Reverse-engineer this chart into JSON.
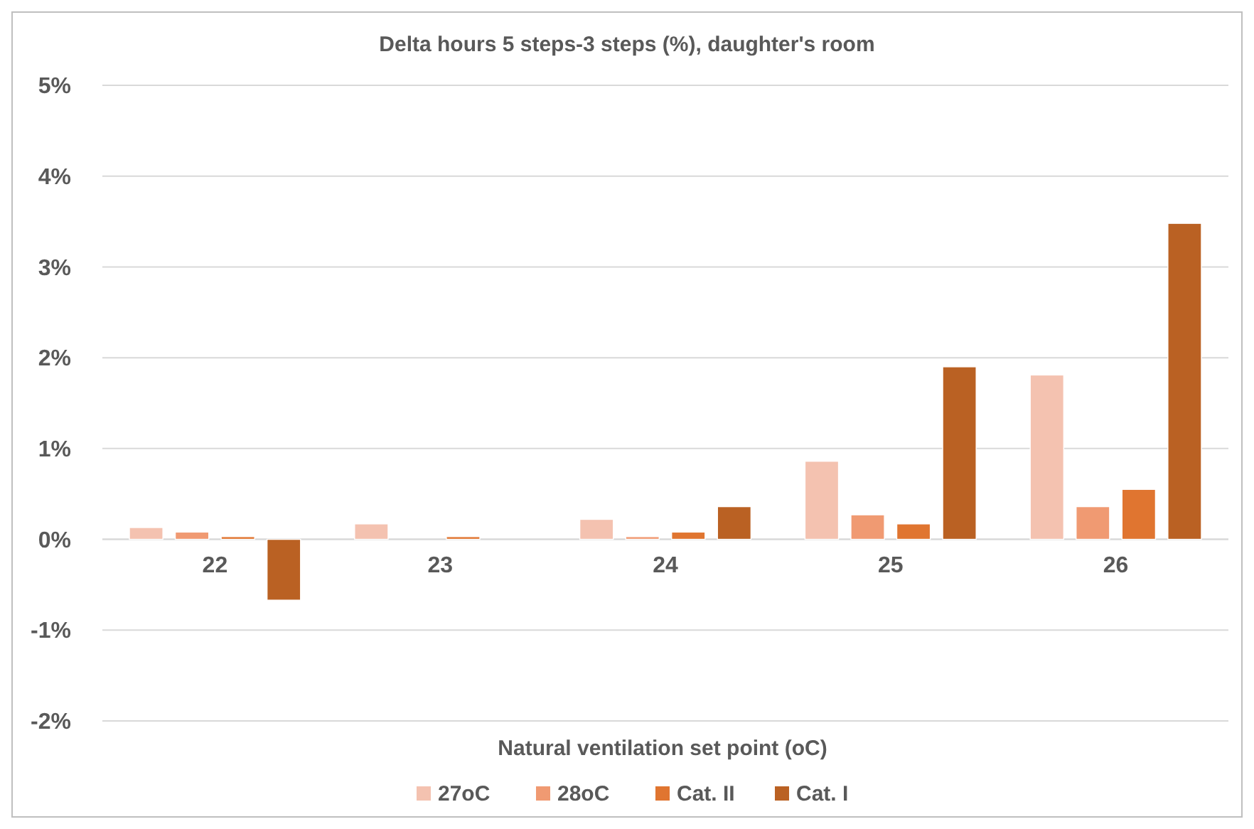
{
  "chart_data": {
    "type": "bar",
    "title": "Delta hours 5 steps-3 steps (%), daughter's room",
    "xlabel": "Natural ventilation set point (oC)",
    "categories": [
      "22",
      "23",
      "24",
      "25",
      "26"
    ],
    "series": [
      {
        "name": "27oC",
        "color": "#f4c2b0",
        "values": [
          0.13,
          0.17,
          0.22,
          0.86,
          1.81
        ]
      },
      {
        "name": "28oC",
        "color": "#f09a72",
        "values": [
          0.08,
          0,
          0.03,
          0.27,
          0.36
        ]
      },
      {
        "name": "Cat. II",
        "color": "#e07530",
        "values": [
          0.03,
          0.03,
          0.08,
          0.17,
          0.55
        ]
      },
      {
        "name": "Cat. I",
        "color": "#ba6123",
        "values": [
          -0.67,
          0,
          0.36,
          1.9,
          3.48
        ]
      }
    ],
    "ylim": [
      -2,
      5
    ],
    "yticks": [
      {
        "value": -2,
        "label": "-2%"
      },
      {
        "value": -1,
        "label": "-1%"
      },
      {
        "value": 0,
        "label": "0%"
      },
      {
        "value": 1,
        "label": "1%"
      },
      {
        "value": 2,
        "label": "2%"
      },
      {
        "value": 3,
        "label": "3%"
      },
      {
        "value": 4,
        "label": "4%"
      },
      {
        "value": 5,
        "label": "5%"
      }
    ],
    "grid": "y",
    "legend": "bottom"
  }
}
